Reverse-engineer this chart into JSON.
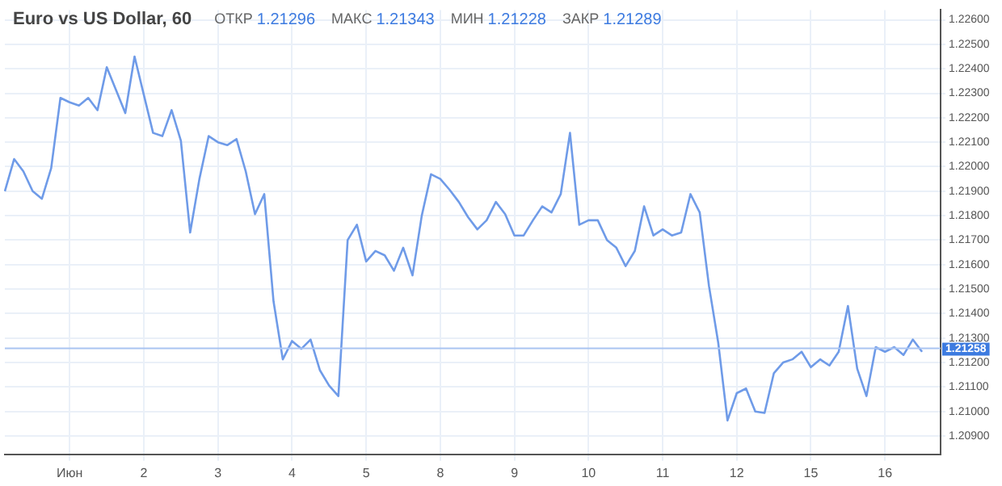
{
  "chart_data": {
    "type": "line",
    "title": "Euro vs US Dollar, 60",
    "annotations": [
      "ОТКР 1.21296",
      "МАКС 1.21343",
      "МИН 1.21228",
      "ЗАКР 1.21289"
    ],
    "categories": [
      null,
      null,
      null,
      null,
      null,
      null,
      null,
      "Июн",
      null,
      null,
      null,
      null,
      null,
      null,
      null,
      "2",
      null,
      null,
      null,
      null,
      null,
      null,
      null,
      "3",
      null,
      null,
      null,
      null,
      null,
      null,
      null,
      "4",
      null,
      null,
      null,
      null,
      null,
      null,
      null,
      "5",
      null,
      null,
      null,
      null,
      null,
      null,
      null,
      "8",
      null,
      null,
      null,
      null,
      null,
      null,
      null,
      "9",
      null,
      null,
      null,
      null,
      null,
      null,
      null,
      "10",
      null,
      null,
      null,
      null,
      null,
      null,
      null,
      "11",
      null,
      null,
      null,
      null,
      null,
      null,
      null,
      "12",
      null,
      null,
      null,
      null,
      null,
      null,
      null,
      "15",
      null,
      null,
      null,
      null,
      null,
      null,
      null,
      "16",
      null,
      null,
      null,
      null,
      null,
      null
    ],
    "series": [
      {
        "color": "#6f9be8",
        "values": [
          1.219,
          1.22031,
          1.21981,
          1.219,
          1.21869,
          1.21994,
          1.22281,
          1.22263,
          1.2225,
          1.22281,
          1.22231,
          1.22406,
          1.22313,
          1.22219,
          1.2245,
          1.22294,
          1.22138,
          1.22125,
          1.22231,
          1.22106,
          1.21731,
          1.2195,
          1.22125,
          1.221,
          1.22088,
          1.22113,
          1.21981,
          1.21806,
          1.21888,
          1.2145,
          1.21213,
          1.21288,
          1.21256,
          1.21294,
          1.21169,
          1.21106,
          1.21063,
          1.217,
          1.21763,
          1.21613,
          1.21656,
          1.21638,
          1.21575,
          1.21669,
          1.21556,
          1.218,
          1.21969,
          1.2195,
          1.21906,
          1.21856,
          1.21794,
          1.21744,
          1.21781,
          1.21856,
          1.21806,
          1.21719,
          1.21719,
          1.21781,
          1.21838,
          1.21813,
          1.21888,
          1.22138,
          1.21763,
          1.21781,
          1.21781,
          1.217,
          1.21669,
          1.21594,
          1.21656,
          1.21838,
          1.21719,
          1.21744,
          1.21719,
          1.21731,
          1.21888,
          1.21813,
          1.21513,
          1.21281,
          1.20963,
          1.21075,
          1.21094,
          1.21,
          1.20994,
          1.21156,
          1.212,
          1.21213,
          1.21244,
          1.21181,
          1.21213,
          1.21188,
          1.21244,
          1.21431,
          1.21175,
          1.21063,
          1.21263,
          1.21244,
          1.21263,
          1.21231,
          1.21294,
          1.21244,
          null,
          null
        ]
      }
    ],
    "ylim": [
      1.20825,
      1.2264
    ],
    "yticks": [
      {
        "value": 1.209,
        "label": "1.20900"
      },
      {
        "value": 1.21,
        "label": "1.21000"
      },
      {
        "value": 1.211,
        "label": "1.21100"
      },
      {
        "value": 1.212,
        "label": "1.21200"
      },
      {
        "value": 1.213,
        "label": "1.21300"
      },
      {
        "value": 1.214,
        "label": "1.21400"
      },
      {
        "value": 1.215,
        "label": "1.21500"
      },
      {
        "value": 1.216,
        "label": "1.21600"
      },
      {
        "value": 1.217,
        "label": "1.21700"
      },
      {
        "value": 1.218,
        "label": "1.21800"
      },
      {
        "value": 1.219,
        "label": "1.21900"
      },
      {
        "value": 1.22,
        "label": "1.22000"
      },
      {
        "value": 1.221,
        "label": "1.22100"
      },
      {
        "value": 1.222,
        "label": "1.22200"
      },
      {
        "value": 1.223,
        "label": "1.22300"
      },
      {
        "value": 1.224,
        "label": "1.22400"
      },
      {
        "value": 1.225,
        "label": "1.22500"
      },
      {
        "value": 1.226,
        "label": "1.22600"
      }
    ],
    "ref_lines": [
      {
        "axis": "y",
        "value": 1.21258,
        "label": "1.21258",
        "color": "#a9c4f2"
      }
    ],
    "grid": true,
    "legend": false,
    "marker": "none",
    "line_style": "solid"
  }
}
